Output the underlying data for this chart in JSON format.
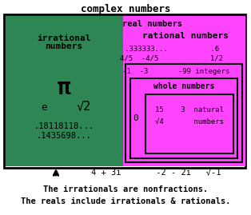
{
  "title": "complex numbers",
  "bg_color": "#ffffff",
  "green_color": "#2d8653",
  "magenta_color": "#ff44ff",
  "black": "#000000",
  "footer_line1": "The irrationals are nonfractions.",
  "footer_line2": "The reals include irrationals & rationals."
}
